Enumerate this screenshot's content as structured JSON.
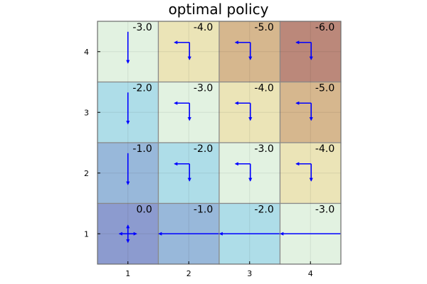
{
  "chart_data": {
    "type": "heatmap",
    "title": "optimal policy",
    "x_ticks": [
      "1",
      "2",
      "3",
      "4"
    ],
    "y_ticks": [
      "1",
      "2",
      "3",
      "4"
    ],
    "xlim": [
      0.5,
      4.5
    ],
    "ylim": [
      0.5,
      4.5
    ],
    "grid": true,
    "cell_colors": {
      "0.0": "#8c9bcf",
      "-1.0": "#98b8da",
      "-2.0": "#aedde8",
      "-3.0": "#e2f2e1",
      "-4.0": "#ebe4b7",
      "-5.0": "#d6b78e",
      "-6.0": "#bb887a"
    },
    "arrow_color": "#0000ff",
    "cells": [
      {
        "x": 1,
        "y": 4,
        "label": "-3.0",
        "policy": [
          "down"
        ]
      },
      {
        "x": 2,
        "y": 4,
        "label": "-4.0",
        "policy": [
          "left",
          "down"
        ]
      },
      {
        "x": 3,
        "y": 4,
        "label": "-5.0",
        "policy": [
          "left",
          "down"
        ]
      },
      {
        "x": 4,
        "y": 4,
        "label": "-6.0",
        "policy": [
          "left",
          "down"
        ]
      },
      {
        "x": 1,
        "y": 3,
        "label": "-2.0",
        "policy": [
          "down"
        ]
      },
      {
        "x": 2,
        "y": 3,
        "label": "-3.0",
        "policy": [
          "left",
          "down"
        ]
      },
      {
        "x": 3,
        "y": 3,
        "label": "-4.0",
        "policy": [
          "left",
          "down"
        ]
      },
      {
        "x": 4,
        "y": 3,
        "label": "-5.0",
        "policy": [
          "left",
          "down"
        ]
      },
      {
        "x": 1,
        "y": 2,
        "label": "-1.0",
        "policy": [
          "down"
        ]
      },
      {
        "x": 2,
        "y": 2,
        "label": "-2.0",
        "policy": [
          "left",
          "down"
        ]
      },
      {
        "x": 3,
        "y": 2,
        "label": "-3.0",
        "policy": [
          "left",
          "down"
        ]
      },
      {
        "x": 4,
        "y": 2,
        "label": "-4.0",
        "policy": [
          "left",
          "down"
        ]
      },
      {
        "x": 1,
        "y": 1,
        "label": "0.0",
        "policy": [
          "up",
          "down",
          "left",
          "right"
        ]
      },
      {
        "x": 2,
        "y": 1,
        "label": "-1.0",
        "policy": [
          "left"
        ]
      },
      {
        "x": 3,
        "y": 1,
        "label": "-2.0",
        "policy": [
          "left"
        ]
      },
      {
        "x": 4,
        "y": 1,
        "label": "-3.0",
        "policy": [
          "left"
        ]
      }
    ]
  }
}
